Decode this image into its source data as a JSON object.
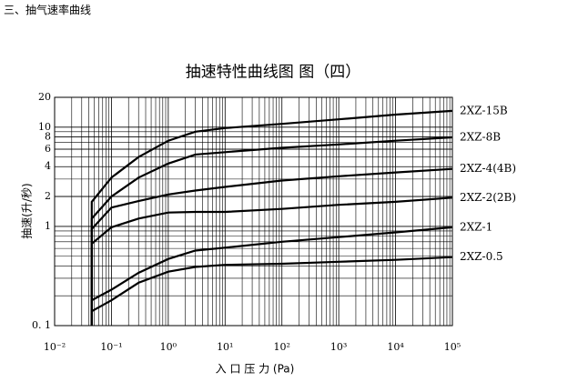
{
  "page": {
    "heading": "三、抽气速率曲线"
  },
  "chart_data": {
    "type": "line",
    "title": "抽速特性曲线图  图（四）",
    "x_label": "入 口 压 力 (Pa)",
    "y_label": "抽速(升/秒)",
    "log_x": true,
    "log_y": true,
    "grid": true,
    "minor_grid": true,
    "xlim": [
      0.01,
      100000
    ],
    "ylim": [
      0.1,
      20
    ],
    "xticks": [
      {
        "value": 0.01,
        "label": "10⁻²"
      },
      {
        "value": 0.1,
        "label": "10⁻¹"
      },
      {
        "value": 1,
        "label": "10⁰"
      },
      {
        "value": 10,
        "label": "10¹"
      },
      {
        "value": 100,
        "label": "10²"
      },
      {
        "value": 1000,
        "label": "10³"
      },
      {
        "value": 10000,
        "label": "10⁴"
      },
      {
        "value": 100000,
        "label": "10⁵"
      }
    ],
    "yticks": [
      {
        "value": 0.1,
        "label": "0. 1"
      },
      1,
      2,
      4,
      6,
      8,
      10,
      20
    ],
    "x": [
      0.045,
      0.045,
      0.1,
      0.3,
      1,
      3,
      10,
      100,
      1000,
      10000,
      100000
    ],
    "series": [
      {
        "name": "2XZ-15B",
        "color": "#000000",
        "values": [
          0.1,
          1.77,
          3.1,
          5.0,
          7.3,
          9.0,
          9.8,
          10.8,
          12,
          13.4,
          14.6
        ]
      },
      {
        "name": "2XZ-8B",
        "color": "#000000",
        "values": [
          0.1,
          1.2,
          2.0,
          3.1,
          4.3,
          5.3,
          5.6,
          6.2,
          6.7,
          7.3,
          7.9
        ]
      },
      {
        "name": "2XZ-4(4B)",
        "color": "#000000",
        "values": [
          0.1,
          0.94,
          1.55,
          1.8,
          2.1,
          2.3,
          2.5,
          2.9,
          3.2,
          3.5,
          3.8
        ]
      },
      {
        "name": "2XZ-2(2B)",
        "color": "#000000",
        "values": [
          0.1,
          0.67,
          0.98,
          1.2,
          1.38,
          1.4,
          1.4,
          1.5,
          1.65,
          1.77,
          1.95
        ]
      },
      {
        "name": "2XZ-1",
        "color": "#000000",
        "values": [
          0.1,
          0.18,
          0.23,
          0.34,
          0.47,
          0.57,
          0.61,
          0.7,
          0.78,
          0.87,
          0.98
        ]
      },
      {
        "name": "2XZ-0.5",
        "color": "#000000",
        "values": [
          0.1,
          0.14,
          0.18,
          0.27,
          0.35,
          0.39,
          0.41,
          0.42,
          0.44,
          0.46,
          0.49
        ]
      }
    ]
  }
}
